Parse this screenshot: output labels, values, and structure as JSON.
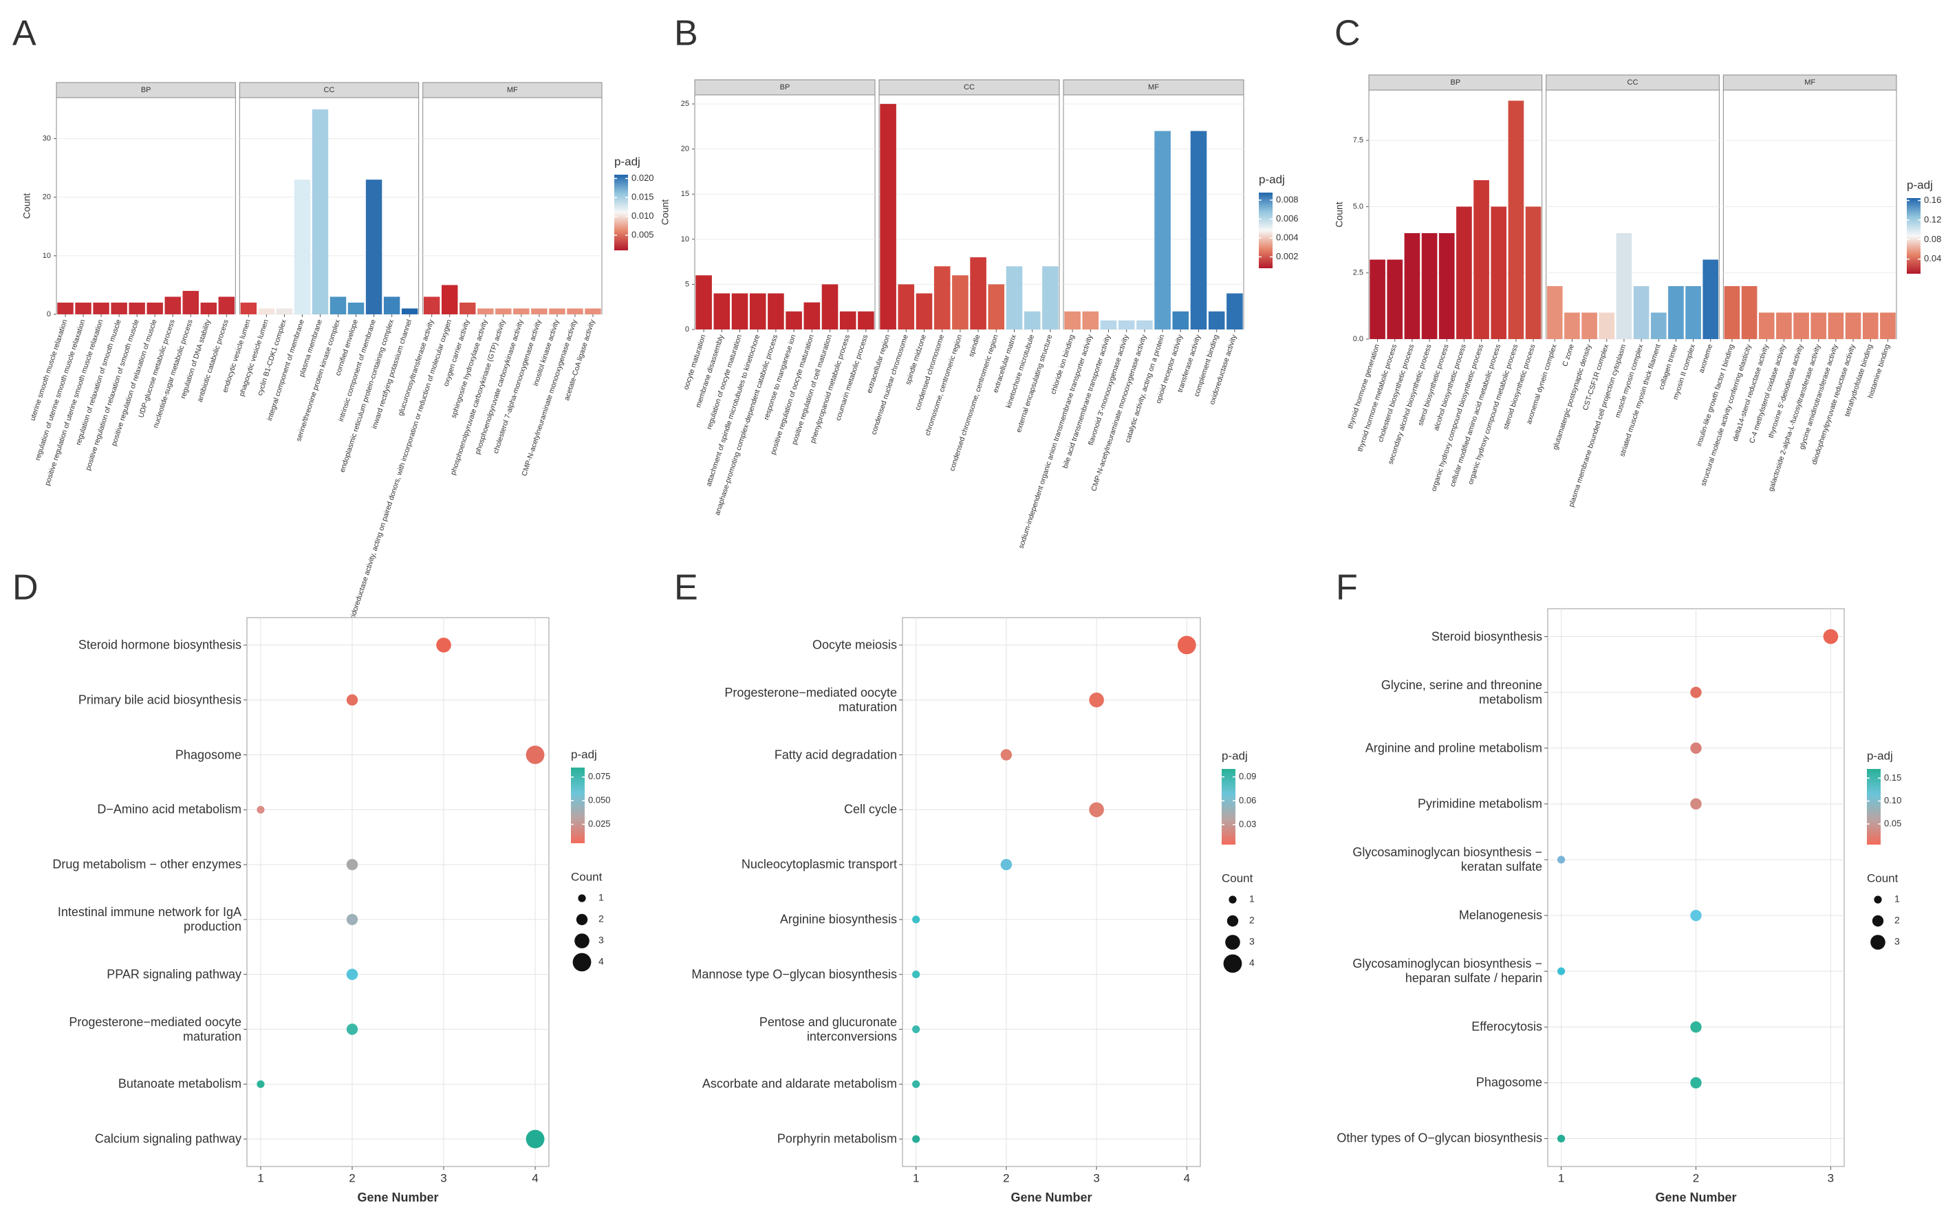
{
  "chart_data": [
    {
      "type": "bar",
      "panel": "A",
      "ylabel": "Count",
      "ylim": [
        0,
        37
      ],
      "yticks": [
        0,
        10,
        20,
        30
      ],
      "facets": [
        {
          "name": "BP",
          "categories": [
            "uterine smooth muscle relaxation",
            "regulation of uterine smooth muscle relaxation",
            "positive regulation of uterine smooth muscle relaxation",
            "regulation of relaxation of smooth muscle",
            "positive regulation of relaxation of smooth muscle",
            "positive regulation of relaxation of muscle",
            "UDP-glucose metabolic process",
            "nucleotide-sugar metabolic process",
            "regulation of DNA stability",
            "antibiotic catabolic process"
          ],
          "values": [
            2,
            2,
            2,
            2,
            2,
            2,
            3,
            4,
            2,
            3
          ],
          "colors": [
            "#c62d35",
            "#c62d35",
            "#c62d35",
            "#c62d35",
            "#c62d35",
            "#c62d35",
            "#c62d35",
            "#c62d35",
            "#c62d35",
            "#c62d35"
          ]
        },
        {
          "name": "CC",
          "categories": [
            "endocytic vesicle lumen",
            "phagocytic vesicle lumen",
            "cyclin B1-CDK1 complex",
            "integral component of membrane",
            "plasma membrane",
            "serine/threonine protein kinase complex",
            "cornified envelope",
            "intrinsic component of membrane",
            "endoplasmic reticulum protein-containing complex",
            "inward rectifying potassium channel"
          ],
          "values": [
            2,
            1,
            1,
            23,
            35,
            3,
            2,
            23,
            3,
            1
          ],
          "colors": [
            "#d33f3e",
            "#f3e4de",
            "#ece7e5",
            "#d9ecf3",
            "#a7cfe4",
            "#4b94c4",
            "#4b94c4",
            "#2e6fb0",
            "#3c84bd",
            "#2166ac"
          ]
        },
        {
          "name": "MF",
          "categories": [
            "glucuronosyltransferase activity",
            "oxidoreductase activity, acting on paired donors, with incorporation or reduction of molecular oxygen",
            "oxygen carrier activity",
            "sphingosine hydroxylase activity",
            "phosphoenolpyruvate carboxykinase (GTP) activity",
            "phosphoenolpyruvate carboxykinase activity",
            "cholesterol 7-alpha-monooxygenase activity",
            "inositol kinase activity",
            "CMP-N-acetylneuraminate monooxygenase activity",
            "acetate-CoA ligase activity"
          ],
          "values": [
            3,
            5,
            2,
            1,
            1,
            1,
            1,
            1,
            1,
            1
          ],
          "colors": [
            "#cf3a3c",
            "#c8272e",
            "#d34b44",
            "#e8907b",
            "#e8907b",
            "#e8907b",
            "#e8907b",
            "#e8907b",
            "#e8907b",
            "#e8907b"
          ]
        }
      ],
      "colorbar": {
        "title": "p-adj",
        "lim": [
          0.001,
          0.021
        ],
        "ticks": [
          0.005,
          {
            "value": 0.01,
            "label": "0.010"
          },
          0.015,
          {
            "value": 0.02,
            "label": "0.020"
          }
        ],
        "colors": [
          "#b2182b",
          "#e58368",
          "#f7f7f7",
          "#92c5de",
          "#2166ac"
        ]
      }
    },
    {
      "type": "bar",
      "panel": "B",
      "ylabel": "Count",
      "ylim": [
        0,
        26
      ],
      "yticks": [
        0,
        5,
        10,
        15,
        20,
        25
      ],
      "facets": [
        {
          "name": "BP",
          "categories": [
            "oocyte maturation",
            "membrane disassembly",
            "regulation of oocyte maturation",
            "attachment of spindle microtubules to kinetochore",
            "anaphase-promoting complex-dependent catabolic process",
            "response to manganese ion",
            "positive regulation of oocyte maturation",
            "positive regulation of cell maturation",
            "phenylpropanoid metabolic process",
            "coumarin metabolic process"
          ],
          "values": [
            6,
            4,
            4,
            4,
            4,
            2,
            3,
            5,
            2,
            2
          ],
          "colors": [
            "#c1272d",
            "#c1272d",
            "#c1272d",
            "#c1272d",
            "#c1272d",
            "#c1272d",
            "#c1272d",
            "#c1272d",
            "#c1272d",
            "#c1272d"
          ]
        },
        {
          "name": "CC",
          "categories": [
            "extracellular region",
            "condensed nuclear chromosome",
            "spindle midzone",
            "condensed chromosome",
            "chromosome, centromeric region",
            "spindle",
            "condensed chromosome, centromeric region",
            "extracellular matrix",
            "kinetochore microtubule",
            "external encapsulating structure"
          ],
          "values": [
            25,
            5,
            4,
            7,
            6,
            8,
            5,
            7,
            2,
            7
          ],
          "colors": [
            "#c1272d",
            "#cc3b38",
            "#cc3b38",
            "#d34c41",
            "#d9614d",
            "#cc3b38",
            "#d9614d",
            "#a6cfe3",
            "#a6cfe3",
            "#a6cfe3"
          ]
        },
        {
          "name": "MF",
          "categories": [
            "chloride ion binding",
            "sodium-independent organic anion transmembrane transporter activity",
            "bile acid transmembrane transporter activity",
            "flavonoid 3'-monooxygenase activity",
            "CMP-N-acetylneuraminate monooxygenase activity",
            "catalytic activity, acting on a protein",
            "opioid receptor activity",
            "transferase activity",
            "complement binding",
            "oxidoreductase activity"
          ],
          "values": [
            2,
            2,
            1,
            1,
            1,
            22,
            2,
            22,
            2,
            4
          ],
          "colors": [
            "#e8927a",
            "#e8927a",
            "#b8d7ea",
            "#b8d7ea",
            "#b8d7ea",
            "#5b9fcc",
            "#3c84bd",
            "#2f72b3",
            "#2f72b3",
            "#2f72b3"
          ]
        }
      ],
      "colorbar": {
        "title": "p-adj",
        "lim": [
          0.0008,
          0.0088
        ],
        "ticks": [
          0.002,
          0.004,
          0.006,
          0.008
        ],
        "colors": [
          "#b2182b",
          "#e58368",
          "#f7f7f7",
          "#92c5de",
          "#2166ac"
        ]
      }
    },
    {
      "type": "bar",
      "panel": "C",
      "ylabel": "Count",
      "ylim": [
        0,
        9.4
      ],
      "yticks": [
        {
          "value": 0,
          "label": "0.0"
        },
        2.5,
        {
          "value": 5,
          "label": "5.0"
        },
        7.5
      ],
      "facets": [
        {
          "name": "BP",
          "categories": [
            "thyroid hormone generation",
            "thyroid hormone metabolic process",
            "cholesterol biosynthetic process",
            "secondary alcohol biosynthetic process",
            "sterol biosynthetic process",
            "alcohol biosynthetic process",
            "organic hydroxy compound biosynthetic process",
            "cellular modified amino acid metabolic process",
            "organic hydroxy compound metabolic process",
            "steroid biosynthetic process"
          ],
          "values": [
            3,
            3,
            4,
            4,
            4,
            5,
            6,
            5,
            9,
            5
          ],
          "colors": [
            "#b2182b",
            "#b2182b",
            "#b2182b",
            "#b2182b",
            "#b2182b",
            "#c0282f",
            "#c93735",
            "#c93735",
            "#cf4a3e",
            "#cf4a3e"
          ]
        },
        {
          "name": "CC",
          "categories": [
            "axonemal dynein complex",
            "C zone",
            "glutamatergic postsynaptic density",
            "CST-CSF1R complex",
            "plasma membrane bounded cell projection cytoplasm",
            "muscle myosin complex",
            "striated muscle myosin thick filament",
            "collagen trimer",
            "myosin II complex",
            "axoneme"
          ],
          "values": [
            2,
            1,
            1,
            1,
            4,
            2,
            1,
            2,
            2,
            3
          ],
          "colors": [
            "#e8917a",
            "#e8917a",
            "#e8917a",
            "#f1d5c8",
            "#d8e3ea",
            "#a8cde2",
            "#7db4d6",
            "#5b9fcc",
            "#5b9fcc",
            "#2f72b3"
          ]
        },
        {
          "name": "MF",
          "categories": [
            "insulin-like growth factor I binding",
            "structural molecule activity conferring elasticity",
            "delta14-sterol reductase activity",
            "C-4 methylsterol oxidase activity",
            "thyroxine 5'-deiodinase activity",
            "galactoside 2-alpha-L-fucosyltransferase activity",
            "glycine amidinotransferase activity",
            "diiodophenylpyruvate reductase activity",
            "tetrahydrofolate binding",
            "histamine binding"
          ],
          "values": [
            2,
            2,
            1,
            1,
            1,
            1,
            1,
            1,
            1,
            1
          ],
          "colors": [
            "#dc6b54",
            "#dc6b54",
            "#e3816a",
            "#e3816a",
            "#e3816a",
            "#e3816a",
            "#e3816a",
            "#e3816a",
            "#e3816a",
            "#e3816a"
          ]
        }
      ],
      "colorbar": {
        "title": "p-adj",
        "lim": [
          0.01,
          0.165
        ],
        "ticks": [
          0.04,
          0.08,
          0.12,
          0.16
        ],
        "colors": [
          "#b2182b",
          "#e58368",
          "#f7f7f7",
          "#92c5de",
          "#2166ac"
        ]
      }
    },
    {
      "type": "dot",
      "panel": "D",
      "xlabel": "Gene Number",
      "xlim": [
        0.85,
        4.15
      ],
      "xticks": [
        1,
        2,
        3,
        4
      ],
      "categories": [
        "Steroid hormone biosynthesis",
        "Primary bile acid biosynthesis",
        "Phagosome",
        "D−Amino acid metabolism",
        "Drug metabolism − other enzymes",
        "Intestinal immune network for IgA\nproduction",
        "PPAR signaling pathway",
        "Progesterone−mediated oocyte\nmaturation",
        "Butanoate metabolism",
        "Calcium signaling pathway"
      ],
      "values": [
        3,
        2,
        4,
        1,
        2,
        2,
        2,
        2,
        1,
        4
      ],
      "colors": [
        "#ea6553",
        "#e5705f",
        "#e26f60",
        "#dc8d86",
        "#a9a9ab",
        "#9fb1b8",
        "#55c3dc",
        "#3bb9a6",
        "#2cb39a",
        "#22ac93"
      ],
      "colorbar": {
        "title": "p-adj",
        "lim": [
          0.005,
          0.085
        ],
        "ticks": [
          0.025,
          {
            "value": 0.05,
            "label": "0.050"
          },
          0.075
        ],
        "colors": [
          "#f26b5b",
          "#b9a4a3",
          "#6cc5d9",
          "#28b096"
        ]
      },
      "size_legend": {
        "title": "Count",
        "values": [
          1,
          2,
          3,
          4
        ]
      }
    },
    {
      "type": "dot",
      "panel": "E",
      "xlabel": "Gene Number",
      "xlim": [
        0.85,
        4.15
      ],
      "xticks": [
        1,
        2,
        3,
        4
      ],
      "categories": [
        "Oocyte meiosis",
        "Progesterone−mediated oocyte\nmaturation",
        "Fatty acid degradation",
        "Cell cycle",
        "Nucleocytoplasmic transport",
        "Arginine biosynthesis",
        "Mannose type O−glycan biosynthesis",
        "Pentose and glucuronate\ninterconversions",
        "Ascorbate and aldarate metabolism",
        "Porphyrin metabolism"
      ],
      "values": [
        4,
        3,
        2,
        3,
        2,
        1,
        1,
        1,
        1,
        1
      ],
      "colors": [
        "#ea6553",
        "#e7705f",
        "#e07e6f",
        "#e07e6f",
        "#66bfdb",
        "#3cc0c8",
        "#3cbfbf",
        "#3ab9b0",
        "#34b6a6",
        "#27ac95"
      ],
      "colorbar": {
        "title": "p-adj",
        "lim": [
          0.005,
          0.1
        ],
        "ticks": [
          0.03,
          0.06,
          0.09
        ],
        "colors": [
          "#f26b5b",
          "#b9a4a3",
          "#6cc5d9",
          "#28b096"
        ]
      },
      "size_legend": {
        "title": "Count",
        "values": [
          1,
          2,
          3,
          4
        ]
      }
    },
    {
      "type": "dot",
      "panel": "F",
      "xlabel": "Gene Number",
      "xlim": [
        0.9,
        3.1
      ],
      "xticks": [
        1,
        2,
        3
      ],
      "categories": [
        "Steroid biosynthesis",
        "Glycine, serine and threonine\nmetabolism",
        "Arginine and proline metabolism",
        "Pyrimidine metabolism",
        "Glycosaminoglycan biosynthesis −\nkeratan sulfate",
        "Melanogenesis",
        "Glycosaminoglycan biosynthesis −\nheparan sulfate / heparin",
        "Efferocytosis",
        "Phagosome",
        "Other types of O−glycan biosynthesis"
      ],
      "values": [
        3,
        2,
        2,
        2,
        1,
        2,
        1,
        2,
        2,
        1
      ],
      "colors": [
        "#ea6553",
        "#e26f60",
        "#d98178",
        "#d38a80",
        "#7ab6d8",
        "#5ec7e3",
        "#3cbfd3",
        "#2fb59c",
        "#2fb59c",
        "#28ad95"
      ],
      "colorbar": {
        "title": "p-adj",
        "lim": [
          0.005,
          0.17
        ],
        "ticks": [
          0.05,
          {
            "value": 0.1,
            "label": "0.10"
          },
          0.15
        ],
        "colors": [
          "#f26b5b",
          "#b9a4a3",
          "#6cc5d9",
          "#28b096"
        ]
      },
      "size_legend": {
        "title": "Count",
        "values": [
          1,
          2,
          3
        ]
      }
    }
  ]
}
